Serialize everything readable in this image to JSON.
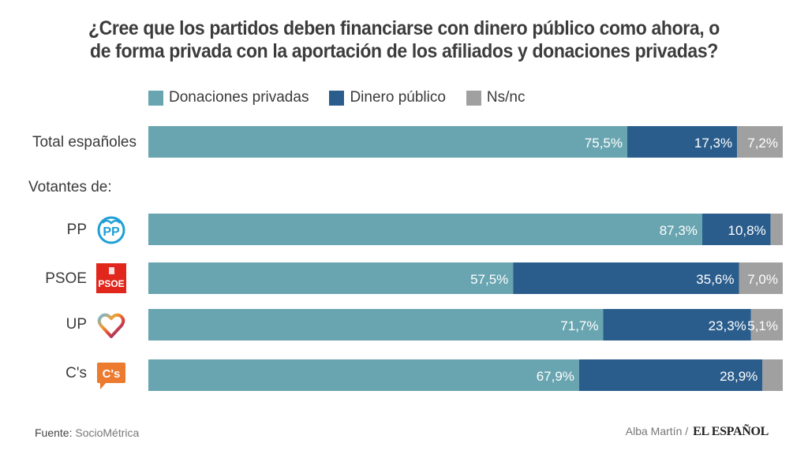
{
  "title_lines": [
    "¿Cree que los partidos deben financiarse con dinero público como ahora, o",
    "de forma privada con la aportación de los afiliados y donaciones privadas?"
  ],
  "section_label": "Votantes de:",
  "footer": {
    "source_label": "Fuente:",
    "source": "SocioMétrica",
    "author": "Alba Martín /",
    "brand": "EL ESPAÑOL"
  },
  "chart_data": {
    "type": "bar",
    "orientation": "horizontal",
    "stacked": true,
    "title": "¿Cree que los partidos deben financiarse con dinero público como ahora, o de forma privada con la aportación de los afiliados y donaciones privadas?",
    "xlabel": "",
    "ylabel": "",
    "xlim": [
      0,
      100
    ],
    "grid": false,
    "legend_position": "top",
    "categories": [
      "Total españoles",
      "PP",
      "PSOE",
      "UP",
      "C's"
    ],
    "category_logos": [
      null,
      "pp-logo",
      "psoe-logo",
      "up-logo",
      "cs-logo"
    ],
    "series": [
      {
        "name": "Donaciones privadas",
        "color": "#69a5b0",
        "values": [
          75.5,
          87.3,
          57.5,
          71.7,
          67.9
        ],
        "labels": [
          "75,5%",
          "87,3%",
          "57,5%",
          "71,7%",
          "67,9%"
        ]
      },
      {
        "name": "Dinero público",
        "color": "#2a5d8c",
        "values": [
          17.3,
          10.8,
          35.6,
          23.3,
          28.9
        ],
        "labels": [
          "17,3%",
          "10,8%",
          "35,6%",
          "23,3%",
          "28,9%"
        ]
      },
      {
        "name": "Ns/nc",
        "color": "#a0a0a0",
        "values": [
          7.2,
          1.9,
          7.0,
          5.1,
          3.2
        ],
        "labels": [
          "7,2%",
          "",
          "7,0%",
          "5,1%",
          ""
        ]
      }
    ]
  }
}
